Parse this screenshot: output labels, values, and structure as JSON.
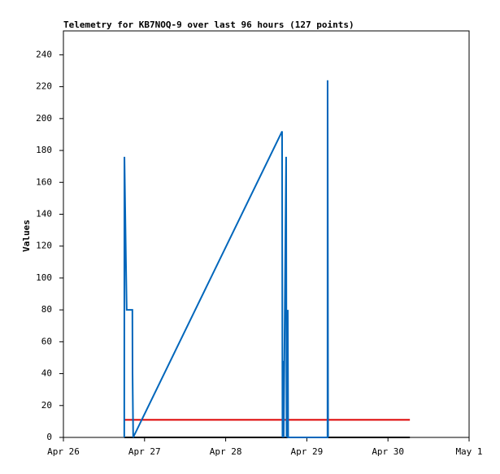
{
  "chart_data": {
    "type": "line",
    "title": "Telemetry for KB7NOQ-9 over last 96 hours (127 points)",
    "y_label": "Values",
    "xlim": [
      0,
      5
    ],
    "xticks": [
      {
        "value": 0,
        "label": "Apr 26"
      },
      {
        "value": 1,
        "label": "Apr 27"
      },
      {
        "value": 2,
        "label": "Apr 28"
      },
      {
        "value": 3,
        "label": "Apr 29"
      },
      {
        "value": 4,
        "label": "Apr 30"
      },
      {
        "value": 5,
        "label": "May 1"
      }
    ],
    "ylim": [
      0,
      255
    ],
    "yticks": [
      0,
      20,
      40,
      60,
      80,
      100,
      120,
      140,
      160,
      180,
      200,
      220,
      240
    ],
    "grid": false,
    "series": [
      {
        "color": "#000000",
        "x": [
          0.75,
          4.27
        ],
        "values": [
          0,
          0
        ]
      },
      {
        "color": "#dd0000",
        "x": [
          0.75,
          4.27
        ],
        "values": [
          11,
          11
        ]
      },
      {
        "color": "#0066bb",
        "x": [
          0.75,
          0.752,
          0.77,
          0.78,
          0.85,
          0.852,
          0.86,
          2.695,
          2.7,
          2.71,
          2.715,
          2.745,
          2.75,
          2.765,
          2.77,
          3.255,
          3.256,
          3.262
        ],
        "values": [
          0,
          176,
          112,
          80,
          80,
          40,
          0,
          192,
          0,
          48,
          0,
          176,
          0,
          80,
          0,
          0,
          224,
          0
        ]
      }
    ]
  }
}
